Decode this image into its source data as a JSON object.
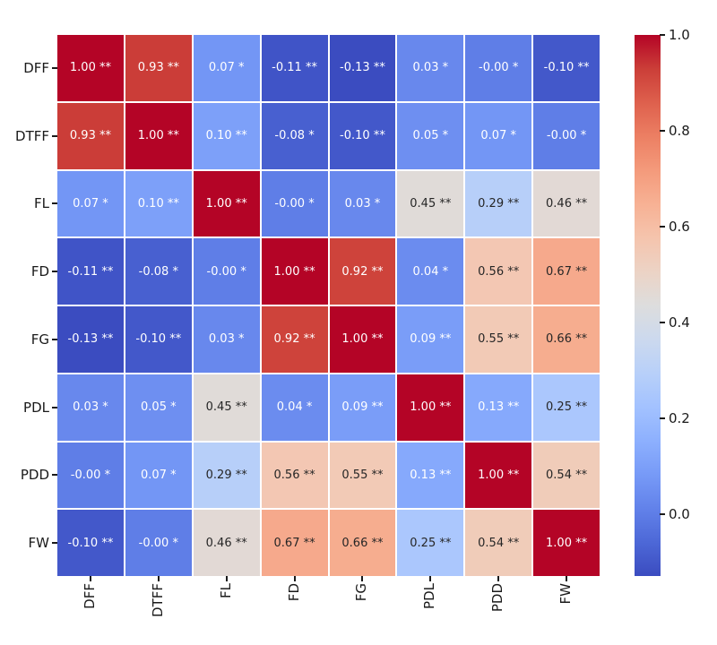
{
  "figure": {
    "background_color": "#ffffff",
    "tick_label_color": "#1a1a1a",
    "grid_line_color": "#ffffff"
  },
  "chart_data": {
    "type": "heatmap",
    "title": "",
    "xlabel": "",
    "ylabel": "",
    "categories": [
      "DFF",
      "DTFF",
      "FL",
      "FD",
      "FG",
      "PDL",
      "PDD",
      "FW"
    ],
    "values": [
      [
        1.0,
        0.93,
        0.07,
        -0.11,
        -0.13,
        0.03,
        -0.0,
        -0.1
      ],
      [
        0.93,
        1.0,
        0.1,
        -0.08,
        -0.1,
        0.05,
        0.07,
        -0.0
      ],
      [
        0.07,
        0.1,
        1.0,
        -0.0,
        0.03,
        0.45,
        0.29,
        0.46
      ],
      [
        -0.11,
        -0.08,
        -0.0,
        1.0,
        0.92,
        0.04,
        0.56,
        0.67
      ],
      [
        -0.13,
        -0.1,
        0.03,
        0.92,
        1.0,
        0.09,
        0.55,
        0.66
      ],
      [
        0.03,
        0.05,
        0.45,
        0.04,
        0.09,
        1.0,
        0.13,
        0.25
      ],
      [
        -0.0,
        0.07,
        0.29,
        0.56,
        0.55,
        0.13,
        1.0,
        0.54
      ],
      [
        -0.1,
        -0.0,
        0.46,
        0.67,
        0.66,
        0.25,
        0.54,
        1.0
      ]
    ],
    "annotations": [
      [
        "1.00 **",
        "0.93 **",
        "0.07 *",
        "-0.11 **",
        "-0.13 **",
        "0.03 *",
        "-0.00 *",
        "-0.10 **"
      ],
      [
        "0.93 **",
        "1.00 **",
        "0.10 **",
        "-0.08 *",
        "-0.10 **",
        "0.05 *",
        "0.07 *",
        "-0.00 *"
      ],
      [
        "0.07 *",
        "0.10 **",
        "1.00 **",
        "-0.00 *",
        "0.03 *",
        "0.45 **",
        "0.29 **",
        "0.46 **"
      ],
      [
        "-0.11 **",
        "-0.08 *",
        "-0.00 *",
        "1.00 **",
        "0.92 **",
        "0.04 *",
        "0.56 **",
        "0.67 **"
      ],
      [
        "-0.13 **",
        "-0.10 **",
        "0.03 *",
        "0.92 **",
        "1.00 **",
        "0.09 **",
        "0.55 **",
        "0.66 **"
      ],
      [
        "0.03 *",
        "0.05 *",
        "0.45 **",
        "0.04 *",
        "0.09 **",
        "1.00 **",
        "0.13 **",
        "0.25 **"
      ],
      [
        "-0.00 *",
        "0.07 *",
        "0.29 **",
        "0.56 **",
        "0.55 **",
        "0.13 **",
        "1.00 **",
        "0.54 **"
      ],
      [
        "-0.10 **",
        "-0.00 *",
        "0.46 **",
        "0.67 **",
        "0.66 **",
        "0.25 **",
        "0.54 **",
        "1.00 **"
      ]
    ],
    "vmin": -0.13,
    "vmax": 1.0,
    "colormap": {
      "name": "coolwarm",
      "stops": [
        "#3B4CC0",
        "#4D68D7",
        "#6282EA",
        "#779AF7",
        "#8DB0FE",
        "#A3C2FF",
        "#B8D0F9",
        "#CCD9EE",
        "#DDDDDD",
        "#ECD3C5",
        "#F5C4AD",
        "#F7B194",
        "#F49A7B",
        "#EC7F63",
        "#DE604D",
        "#CB3E38",
        "#B40426"
      ]
    },
    "annotation_text_colors": {
      "dark": "#262626",
      "light": "#FFFFFF"
    },
    "legend_position": "right-colorbar",
    "grid": "white-cell-separators",
    "colorbar": {
      "ticks": [
        {
          "label": "1.0",
          "value": 1.0
        },
        {
          "label": "0.8",
          "value": 0.8
        },
        {
          "label": "0.6",
          "value": 0.6
        },
        {
          "label": "0.4",
          "value": 0.4
        },
        {
          "label": "0.2",
          "value": 0.2
        },
        {
          "label": "0.0",
          "value": 0.0
        }
      ]
    }
  }
}
